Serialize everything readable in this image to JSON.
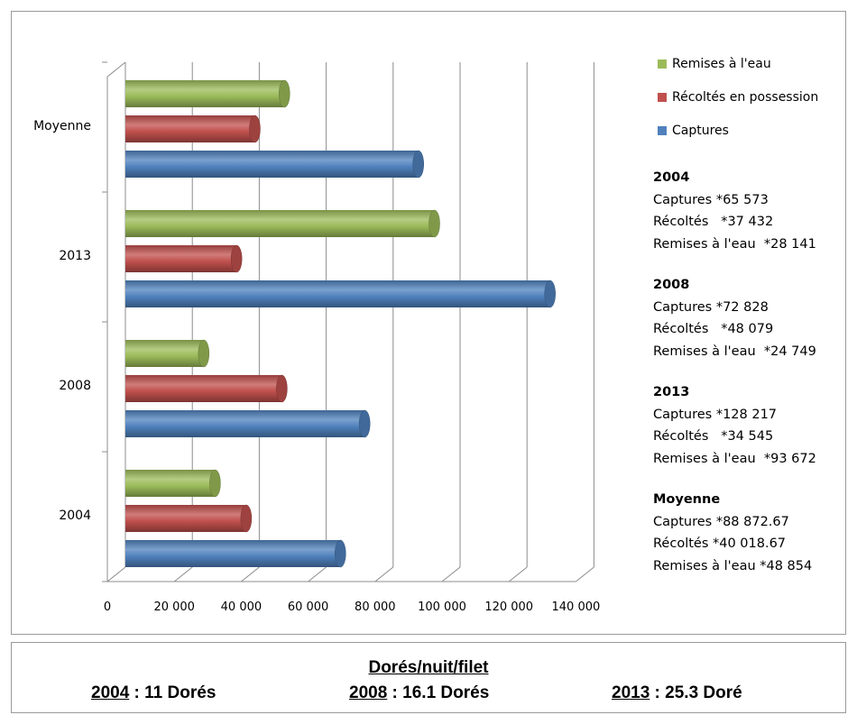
{
  "chart_data": {
    "type": "bar",
    "orientation": "horizontal",
    "categories": [
      "2004",
      "2008",
      "2013",
      "Moyenne"
    ],
    "series": [
      {
        "name": "Captures",
        "color": "#4f81bd",
        "values": [
          65573,
          72828,
          128217,
          88872.67
        ]
      },
      {
        "name": "Récoltés en possession",
        "color": "#c0504d",
        "values": [
          37432,
          48079,
          34545,
          40018.67
        ]
      },
      {
        "name": "Remises à l'eau",
        "color": "#9bbb59",
        "values": [
          28141,
          24749,
          93672,
          48854
        ]
      }
    ],
    "xlim": [
      0,
      140000
    ],
    "x_ticks": [
      "0",
      "20 000",
      "40 000",
      "60 000",
      "80 000",
      "100 000",
      "120 000",
      "140 000"
    ],
    "grid": true,
    "legend_position": "top-right",
    "legend_order": [
      "Remises à l'eau",
      "Récoltés en possession",
      "Captures"
    ]
  },
  "summary": [
    {
      "year": "2004",
      "lines": [
        "Captures *65 573",
        "Récoltés   *37 432",
        "Remises à l'eau  *28 141"
      ]
    },
    {
      "year": "2008",
      "lines": [
        "Captures *72 828",
        "Récoltés   *48 079",
        "Remises à l'eau  *24 749"
      ]
    },
    {
      "year": "2013",
      "lines": [
        "Captures *128 217",
        "Récoltés   *34 545",
        "Remises à l'eau  *93 672"
      ]
    },
    {
      "year": "Moyenne",
      "lines": [
        "Captures *88 872.67",
        "Récoltés *40 018.67",
        "Remises à l'eau *48 854"
      ]
    }
  ],
  "footer": {
    "title": "Dorés/nuit/filet",
    "items": [
      {
        "year": "2004",
        "text": " : 11 Dorés"
      },
      {
        "year": "2008",
        "text": " : 16.1 Dorés"
      },
      {
        "year": "2013",
        "text": " : 25.3 Doré"
      }
    ]
  }
}
